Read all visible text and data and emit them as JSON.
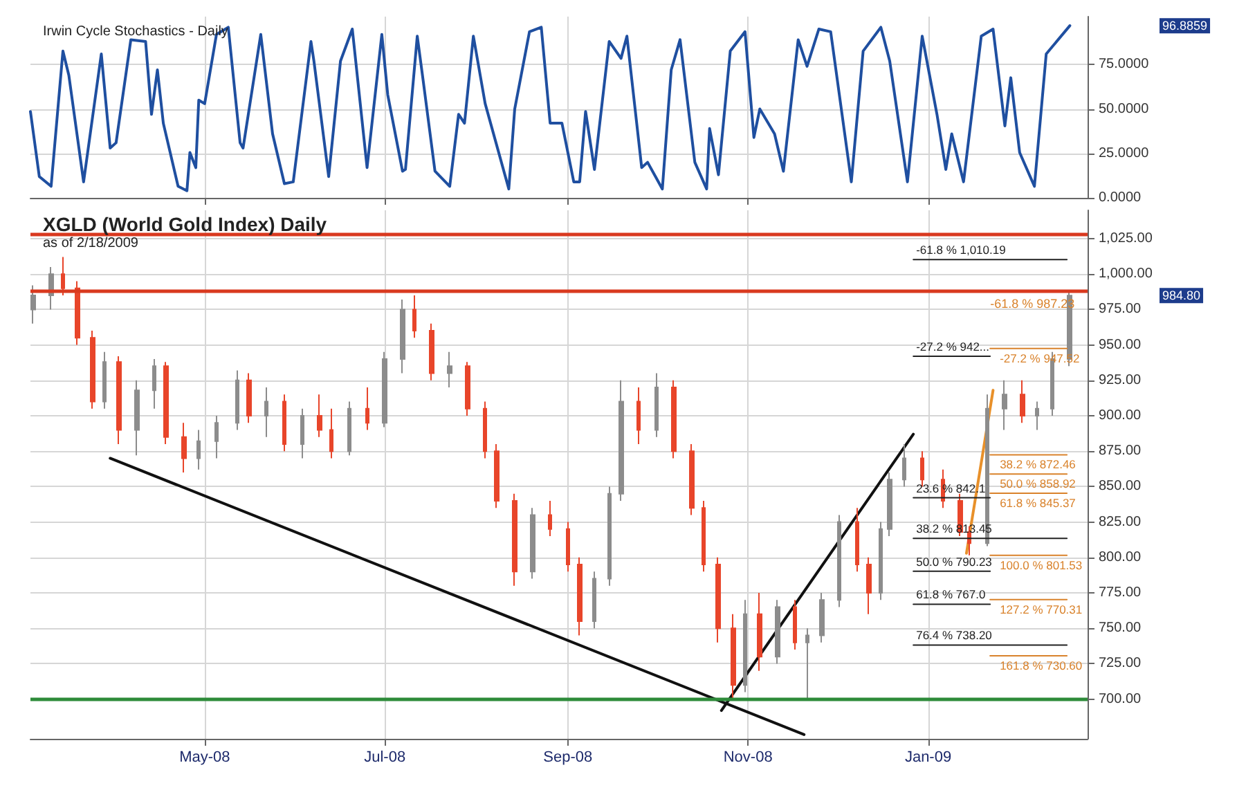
{
  "chart_data": [
    {
      "type": "line",
      "title": "Irwin Cycle Stochastics - Daily",
      "xlim": [
        "2008-03-03",
        "2009-02-24"
      ],
      "xticks": [
        {
          "value": "2008-05-01",
          "label": null
        },
        {
          "value": "2008-07-01",
          "label": null
        },
        {
          "value": "2008-09-01",
          "label": null
        },
        {
          "value": "2008-11-01",
          "label": null
        },
        {
          "value": "2009-01-01",
          "label": null
        }
      ],
      "ylim": [
        0,
        102
      ],
      "yticks": [
        {
          "value": 0,
          "label": "0.0000"
        },
        {
          "value": 25,
          "label": "25.0000"
        },
        {
          "value": 50,
          "label": "50.0000"
        },
        {
          "value": 75,
          "label": "75.0000"
        }
      ],
      "grid": true,
      "tick_labels": "y",
      "annotations": [
        "96.8859"
      ],
      "series": [
        {
          "color": "#1f4fa0",
          "x": [
            "2008-03-03",
            "2008-03-06",
            "2008-03-10",
            "2008-03-14",
            "2008-03-16",
            "2008-03-21",
            "2008-03-27",
            "2008-03-30",
            "2008-04-01",
            "2008-04-06",
            "2008-04-11",
            "2008-04-13",
            "2008-04-15",
            "2008-04-17",
            "2008-04-22",
            "2008-04-25",
            "2008-04-26",
            "2008-04-28",
            "2008-04-29",
            "2008-05-01",
            "2008-05-05",
            "2008-05-09",
            "2008-05-13",
            "2008-05-14",
            "2008-05-20",
            "2008-05-24",
            "2008-05-28",
            "2008-05-31",
            "2008-06-06",
            "2008-06-07",
            "2008-06-12",
            "2008-06-16",
            "2008-06-20",
            "2008-06-25",
            "2008-06-30",
            "2008-07-02",
            "2008-07-07",
            "2008-07-08",
            "2008-07-12",
            "2008-07-14",
            "2008-07-18",
            "2008-07-23",
            "2008-07-26",
            "2008-07-28",
            "2008-07-31",
            "2008-08-04",
            "2008-08-12",
            "2008-08-14",
            "2008-08-19",
            "2008-08-23",
            "2008-08-26",
            "2008-08-30",
            "2008-09-03",
            "2008-09-05",
            "2008-09-07",
            "2008-09-10",
            "2008-09-15",
            "2008-09-19",
            "2008-09-21",
            "2008-09-26",
            "2008-09-28",
            "2008-10-03",
            "2008-10-06",
            "2008-10-09",
            "2008-10-14",
            "2008-10-18",
            "2008-10-19",
            "2008-10-22",
            "2008-10-26",
            "2008-10-31",
            "2008-11-03",
            "2008-11-05",
            "2008-11-10",
            "2008-11-13",
            "2008-11-18",
            "2008-11-21",
            "2008-11-25",
            "2008-11-29",
            "2008-12-06",
            "2008-12-10",
            "2008-12-16",
            "2008-12-19",
            "2008-12-25",
            "2008-12-30",
            "2009-01-04",
            "2009-01-07",
            "2009-01-09",
            "2009-01-13",
            "2009-01-19",
            "2009-01-23",
            "2009-01-27",
            "2009-01-29",
            "2009-02-01",
            "2009-02-06",
            "2009-02-10",
            "2009-02-18"
          ],
          "values": [
            48.6,
            12,
            6.5,
            82.6,
            69,
            9,
            81,
            28,
            31,
            89,
            88,
            47,
            72,
            42,
            6.5,
            4,
            25.5,
            17,
            55,
            53,
            92,
            96,
            31,
            28,
            92,
            36,
            8,
            9,
            88,
            77,
            12,
            77,
            95,
            17,
            92,
            58,
            15,
            16,
            91,
            66,
            15,
            6.5,
            47,
            42,
            91,
            53,
            5,
            50,
            93.5,
            96,
            42,
            42,
            9,
            9,
            48.6,
            16,
            88,
            78.5,
            91,
            17,
            20,
            5,
            72,
            89,
            20,
            5,
            39,
            13,
            82.6,
            93.5,
            34,
            50,
            36,
            15,
            89,
            74,
            95,
            93.5,
            9,
            82.6,
            96,
            77,
            9,
            91,
            47,
            16,
            36,
            9,
            91,
            95,
            40.5,
            67.6,
            25.5,
            6.5,
            81,
            96.8859
          ]
        }
      ]
    },
    {
      "type": "candlestick",
      "title": "XGLD (World Gold Index) Daily",
      "subtitle": "as of 2/18/2009",
      "xlim": [
        "2008-03-03",
        "2009-02-24"
      ],
      "xticks": [
        {
          "value": "2008-05-01",
          "label": "May-08"
        },
        {
          "value": "2008-07-01",
          "label": "Jul-08"
        },
        {
          "value": "2008-09-01",
          "label": "Sep-08"
        },
        {
          "value": "2008-11-01",
          "label": "Nov-08"
        },
        {
          "value": "2009-01-01",
          "label": "Jan-09"
        }
      ],
      "ylim": [
        672,
        1045
      ],
      "yticks": [
        {
          "value": 700,
          "label": "700.00"
        },
        {
          "value": 725,
          "label": "725.00"
        },
        {
          "value": 750,
          "label": "750.00"
        },
        {
          "value": 775,
          "label": "775.00"
        },
        {
          "value": 800,
          "label": "800.00"
        },
        {
          "value": 825,
          "label": "825.00"
        },
        {
          "value": 850,
          "label": "850.00"
        },
        {
          "value": 875,
          "label": "875.00"
        },
        {
          "value": 900,
          "label": "900.00"
        },
        {
          "value": 925,
          "label": "925.00"
        },
        {
          "value": 950,
          "label": "950.00"
        },
        {
          "value": 975,
          "label": "975.00"
        },
        {
          "value": 1000,
          "label": "1,000.00"
        },
        {
          "value": 1025,
          "label": "1,025.00"
        }
      ],
      "grid": true,
      "annotations": [
        "984.80",
        {
          "text": "-61.8 % 987.23",
          "x": "2009-01-22",
          "y": 987.23
        }
      ],
      "ref_lines": [
        {
          "axis": "y",
          "value": 1028,
          "color": "#d9391f"
        },
        {
          "axis": "y",
          "value": 988,
          "color": "#d9391f"
        },
        {
          "axis": "y",
          "value": 700,
          "color": "#2e8b3a"
        }
      ],
      "x": [
        "2008-03-04",
        "2008-03-10",
        "2008-03-14",
        "2008-03-19",
        "2008-03-24",
        "2008-03-28",
        "2008-04-02",
        "2008-04-08",
        "2008-04-14",
        "2008-04-18",
        "2008-04-24",
        "2008-04-29",
        "2008-05-05",
        "2008-05-12",
        "2008-05-16",
        "2008-05-22",
        "2008-05-28",
        "2008-06-03",
        "2008-06-09",
        "2008-06-13",
        "2008-06-19",
        "2008-06-25",
        "2008-07-01",
        "2008-07-07",
        "2008-07-11",
        "2008-07-17",
        "2008-07-23",
        "2008-07-29",
        "2008-08-04",
        "2008-08-08",
        "2008-08-14",
        "2008-08-20",
        "2008-08-26",
        "2008-09-01",
        "2008-09-05",
        "2008-09-10",
        "2008-09-15",
        "2008-09-19",
        "2008-09-25",
        "2008-10-01",
        "2008-10-07",
        "2008-10-13",
        "2008-10-17",
        "2008-10-22",
        "2008-10-27",
        "2008-10-31",
        "2008-11-05",
        "2008-11-11",
        "2008-11-17",
        "2008-11-21",
        "2008-11-26",
        "2008-12-02",
        "2008-12-08",
        "2008-12-12",
        "2008-12-16",
        "2008-12-19",
        "2008-12-24",
        "2008-12-30",
        "2009-01-06",
        "2009-01-12",
        "2009-01-15",
        "2009-01-21",
        "2009-01-27",
        "2009-02-02",
        "2009-02-07",
        "2009-02-12",
        "2009-02-18"
      ],
      "ohlc": [
        [
          975,
          992,
          965,
          985
        ],
        [
          985,
          1005,
          975,
          1000
        ],
        [
          1000,
          1012,
          985,
          990
        ],
        [
          990,
          995,
          950,
          955
        ],
        [
          955,
          960,
          905,
          910
        ],
        [
          910,
          945,
          905,
          938
        ],
        [
          938,
          942,
          880,
          890
        ],
        [
          890,
          925,
          872,
          918
        ],
        [
          918,
          940,
          905,
          935
        ],
        [
          935,
          938,
          880,
          885
        ],
        [
          885,
          895,
          860,
          870
        ],
        [
          870,
          890,
          862,
          882
        ],
        [
          882,
          900,
          870,
          895
        ],
        [
          895,
          932,
          890,
          925
        ],
        [
          925,
          930,
          895,
          900
        ],
        [
          900,
          920,
          885,
          910
        ],
        [
          910,
          915,
          875,
          880
        ],
        [
          880,
          905,
          870,
          900
        ],
        [
          900,
          915,
          885,
          890
        ],
        [
          890,
          905,
          870,
          875
        ],
        [
          875,
          910,
          872,
          905
        ],
        [
          905,
          920,
          890,
          895
        ],
        [
          895,
          945,
          892,
          940
        ],
        [
          940,
          982,
          930,
          975
        ],
        [
          975,
          985,
          955,
          960
        ],
        [
          960,
          965,
          925,
          930
        ],
        [
          930,
          945,
          920,
          935
        ],
        [
          935,
          938,
          900,
          905
        ],
        [
          905,
          910,
          870,
          875
        ],
        [
          875,
          880,
          835,
          840
        ],
        [
          840,
          845,
          780,
          790
        ],
        [
          790,
          835,
          785,
          830
        ],
        [
          830,
          840,
          815,
          820
        ],
        [
          820,
          825,
          790,
          795
        ],
        [
          795,
          800,
          745,
          755
        ],
        [
          755,
          790,
          750,
          785
        ],
        [
          785,
          850,
          780,
          845
        ],
        [
          845,
          925,
          840,
          910
        ],
        [
          910,
          920,
          880,
          890
        ],
        [
          890,
          930,
          885,
          920
        ],
        [
          920,
          925,
          870,
          875
        ],
        [
          875,
          880,
          830,
          835
        ],
        [
          835,
          840,
          790,
          795
        ],
        [
          795,
          800,
          740,
          750
        ],
        [
          750,
          760,
          700,
          710
        ],
        [
          710,
          770,
          705,
          760
        ],
        [
          760,
          775,
          720,
          730
        ],
        [
          730,
          770,
          725,
          765
        ],
        [
          765,
          770,
          735,
          740
        ],
        [
          740,
          750,
          700,
          745
        ],
        [
          745,
          775,
          740,
          770
        ],
        [
          770,
          830,
          765,
          825
        ],
        [
          825,
          835,
          790,
          795
        ],
        [
          795,
          800,
          760,
          775
        ],
        [
          775,
          825,
          770,
          820
        ],
        [
          820,
          860,
          815,
          855
        ],
        [
          855,
          880,
          850,
          870
        ],
        [
          870,
          875,
          850,
          855
        ],
        [
          855,
          862,
          835,
          840
        ],
        [
          840,
          845,
          815,
          818
        ],
        [
          818,
          822,
          801.53,
          810
        ],
        [
          810,
          915,
          808,
          905
        ],
        [
          905,
          925,
          890,
          915
        ],
        [
          915,
          925,
          895,
          900
        ],
        [
          900,
          910,
          890,
          905
        ],
        [
          905,
          945,
          900,
          940
        ],
        [
          940,
          987,
          935,
          984.8
        ]
      ],
      "colors": [
        "#8c8c8c",
        "#8c8c8c",
        "#e8452a",
        "#e8452a",
        "#e8452a",
        "#8c8c8c",
        "#e8452a",
        "#8c8c8c",
        "#8c8c8c",
        "#e8452a",
        "#e8452a",
        "#8c8c8c",
        "#8c8c8c",
        "#8c8c8c",
        "#e8452a",
        "#8c8c8c",
        "#e8452a",
        "#8c8c8c",
        "#e8452a",
        "#e8452a",
        "#8c8c8c",
        "#e8452a",
        "#8c8c8c",
        "#8c8c8c",
        "#e8452a",
        "#e8452a",
        "#8c8c8c",
        "#e8452a",
        "#e8452a",
        "#e8452a",
        "#e8452a",
        "#8c8c8c",
        "#e8452a",
        "#e8452a",
        "#e8452a",
        "#8c8c8c",
        "#8c8c8c",
        "#8c8c8c",
        "#e8452a",
        "#8c8c8c",
        "#e8452a",
        "#e8452a",
        "#e8452a",
        "#e8452a",
        "#e8452a",
        "#8c8c8c",
        "#e8452a",
        "#8c8c8c",
        "#e8452a",
        "#8c8c8c",
        "#8c8c8c",
        "#8c8c8c",
        "#e8452a",
        "#e8452a",
        "#8c8c8c",
        "#8c8c8c",
        "#8c8c8c",
        "#e8452a",
        "#e8452a",
        "#e8452a",
        "#e8452a",
        "#8c8c8c",
        "#8c8c8c",
        "#e8452a",
        "#8c8c8c",
        "#8c8c8c",
        "#8c8c8c"
      ],
      "series": [
        {
          "type": "line",
          "color": "#111111",
          "x": [
            "2008-03-30",
            "2008-11-20"
          ],
          "values": [
            870,
            675
          ]
        },
        {
          "type": "line",
          "color": "#111111",
          "x": [
            "2008-10-23",
            "2008-12-27"
          ],
          "values": [
            692,
            887
          ]
        },
        {
          "type": "line",
          "color": "#e8902a",
          "x": [
            "2009-01-14",
            "2009-01-23"
          ],
          "values": [
            803,
            918
          ]
        },
        {
          "type": "line",
          "name": "-61.8 % 1,010.19",
          "color": "#222222",
          "x": [
            "2008-12-27",
            "2009-02-17"
          ],
          "values": [
            1010.19,
            1010.19
          ]
        },
        {
          "type": "line",
          "name": "-27.2 % 942...",
          "color": "#222222",
          "x": [
            "2008-12-27",
            "2009-01-22"
          ],
          "values": [
            942,
            942
          ]
        },
        {
          "type": "line",
          "name": "23.6 % 842.1",
          "color": "#222222",
          "x": [
            "2008-12-27",
            "2009-01-22"
          ],
          "values": [
            842.1,
            842.1
          ]
        },
        {
          "type": "line",
          "name": "38.2 % 813.45",
          "color": "#222222",
          "x": [
            "2008-12-27",
            "2009-02-17"
          ],
          "values": [
            813.45,
            813.45
          ]
        },
        {
          "type": "line",
          "name": "50.0 % 790.23",
          "color": "#222222",
          "x": [
            "2008-12-27",
            "2009-01-22"
          ],
          "values": [
            790.23,
            790.23
          ]
        },
        {
          "type": "line",
          "name": "61.8 % 767.0",
          "color": "#222222",
          "x": [
            "2008-12-27",
            "2009-01-22"
          ],
          "values": [
            767.0,
            767.0
          ]
        },
        {
          "type": "line",
          "name": "76.4 % 738.20",
          "color": "#222222",
          "x": [
            "2008-12-27",
            "2009-02-17"
          ],
          "values": [
            738.2,
            738.2
          ]
        },
        {
          "type": "line",
          "name": "-27.2 % 947.52",
          "color": "#d9822b",
          "x": [
            "2009-01-22",
            "2009-02-17"
          ],
          "values": [
            947.52,
            947.52
          ]
        },
        {
          "type": "line",
          "name": "38.2 % 872.46",
          "color": "#d9822b",
          "x": [
            "2009-01-22",
            "2009-02-17"
          ],
          "values": [
            872.46,
            872.46
          ]
        },
        {
          "type": "line",
          "name": "50.0 % 858.92",
          "color": "#d9822b",
          "x": [
            "2009-01-22",
            "2009-02-17"
          ],
          "values": [
            858.92,
            858.92
          ]
        },
        {
          "type": "line",
          "name": "61.8 % 845.37",
          "color": "#d9822b",
          "x": [
            "2009-01-22",
            "2009-02-17"
          ],
          "values": [
            845.37,
            845.37
          ]
        },
        {
          "type": "line",
          "name": "100.0 % 801.53",
          "color": "#d9822b",
          "x": [
            "2009-01-22",
            "2009-02-17"
          ],
          "values": [
            801.53,
            801.53
          ]
        },
        {
          "type": "line",
          "name": "127.2 % 770.31",
          "color": "#d9822b",
          "x": [
            "2009-01-22",
            "2009-02-17"
          ],
          "values": [
            770.31,
            770.31
          ]
        },
        {
          "type": "line",
          "name": "161.8 % 730.60",
          "color": "#d9822b",
          "x": [
            "2009-01-22",
            "2009-02-17"
          ],
          "values": [
            730.6,
            730.6
          ]
        }
      ]
    }
  ]
}
